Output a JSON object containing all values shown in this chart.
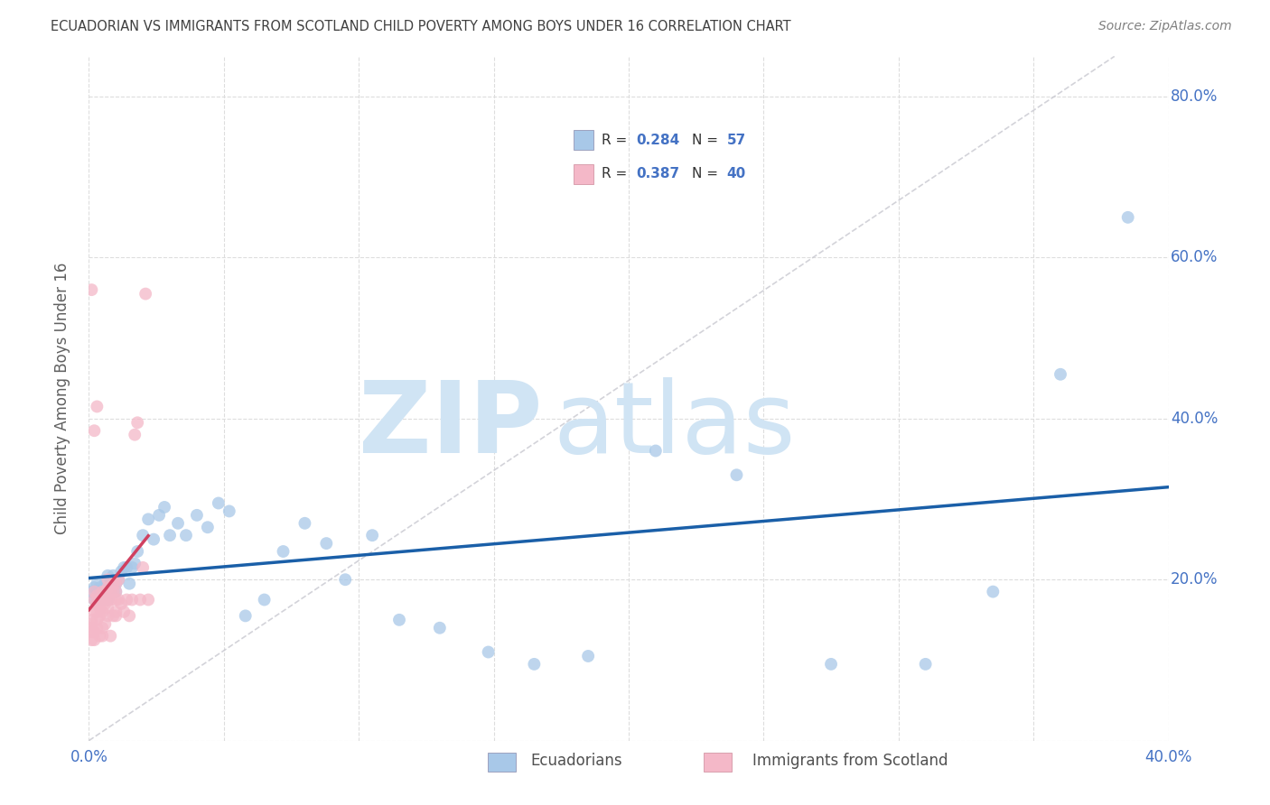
{
  "title": "ECUADORIAN VS IMMIGRANTS FROM SCOTLAND CHILD POVERTY AMONG BOYS UNDER 16 CORRELATION CHART",
  "source": "Source: ZipAtlas.com",
  "ylabel": "Child Poverty Among Boys Under 16",
  "xlim": [
    0.0,
    0.4
  ],
  "ylim": [
    0.0,
    0.85
  ],
  "xtick_vals": [
    0.0,
    0.05,
    0.1,
    0.15,
    0.2,
    0.25,
    0.3,
    0.35,
    0.4
  ],
  "xtick_labels": [
    "0.0%",
    "",
    "",
    "",
    "",
    "",
    "",
    "",
    "40.0%"
  ],
  "ytick_vals": [
    0.0,
    0.2,
    0.4,
    0.6,
    0.8
  ],
  "ytick_labels": [
    "",
    "20.0%",
    "40.0%",
    "60.0%",
    "80.0%"
  ],
  "color_blue": "#a8c8e8",
  "color_pink": "#f4b8c8",
  "color_trend_blue": "#1a5fa8",
  "color_trend_pink": "#d04060",
  "color_ref_line": "#c8c8d0",
  "watermark_color": "#d0e4f4",
  "axis_label_color": "#4472c4",
  "title_color": "#404040",
  "source_color": "#808080",
  "ylabel_color": "#606060",
  "ecuador_x": [
    0.001,
    0.002,
    0.002,
    0.003,
    0.003,
    0.004,
    0.004,
    0.005,
    0.005,
    0.006,
    0.006,
    0.007,
    0.007,
    0.008,
    0.008,
    0.009,
    0.01,
    0.01,
    0.011,
    0.012,
    0.013,
    0.014,
    0.015,
    0.016,
    0.017,
    0.018,
    0.02,
    0.022,
    0.024,
    0.026,
    0.028,
    0.03,
    0.033,
    0.036,
    0.04,
    0.044,
    0.048,
    0.052,
    0.058,
    0.065,
    0.072,
    0.08,
    0.088,
    0.095,
    0.105,
    0.115,
    0.13,
    0.148,
    0.165,
    0.185,
    0.21,
    0.24,
    0.275,
    0.31,
    0.335,
    0.36,
    0.385
  ],
  "ecuador_y": [
    0.185,
    0.19,
    0.175,
    0.185,
    0.195,
    0.18,
    0.19,
    0.185,
    0.175,
    0.185,
    0.195,
    0.175,
    0.205,
    0.185,
    0.195,
    0.205,
    0.195,
    0.185,
    0.2,
    0.21,
    0.215,
    0.215,
    0.195,
    0.215,
    0.22,
    0.235,
    0.255,
    0.275,
    0.25,
    0.28,
    0.29,
    0.255,
    0.27,
    0.255,
    0.28,
    0.265,
    0.295,
    0.285,
    0.155,
    0.175,
    0.235,
    0.27,
    0.245,
    0.2,
    0.255,
    0.15,
    0.14,
    0.11,
    0.095,
    0.105,
    0.36,
    0.33,
    0.095,
    0.095,
    0.185,
    0.455,
    0.65
  ],
  "scotland_x": [
    0.001,
    0.001,
    0.002,
    0.002,
    0.002,
    0.003,
    0.003,
    0.003,
    0.004,
    0.004,
    0.004,
    0.005,
    0.005,
    0.005,
    0.006,
    0.006,
    0.006,
    0.007,
    0.007,
    0.007,
    0.008,
    0.008,
    0.009,
    0.009,
    0.01,
    0.01,
    0.01,
    0.011,
    0.011,
    0.012,
    0.013,
    0.014,
    0.015,
    0.016,
    0.017,
    0.018,
    0.019,
    0.02,
    0.021,
    0.022
  ],
  "scotland_y": [
    0.14,
    0.15,
    0.175,
    0.16,
    0.185,
    0.17,
    0.16,
    0.18,
    0.155,
    0.175,
    0.165,
    0.16,
    0.175,
    0.185,
    0.17,
    0.175,
    0.185,
    0.19,
    0.175,
    0.2,
    0.185,
    0.175,
    0.195,
    0.185,
    0.175,
    0.195,
    0.185,
    0.175,
    0.2,
    0.17,
    0.16,
    0.175,
    0.155,
    0.175,
    0.38,
    0.395,
    0.175,
    0.215,
    0.555,
    0.175
  ],
  "scotland_extra_x": [
    0.001,
    0.001,
    0.001,
    0.002,
    0.002,
    0.003,
    0.003,
    0.004,
    0.005,
    0.005,
    0.006,
    0.007,
    0.007,
    0.008,
    0.009,
    0.01,
    0.01,
    0.001,
    0.002,
    0.003
  ],
  "scotland_extra_y": [
    0.145,
    0.135,
    0.125,
    0.135,
    0.125,
    0.14,
    0.15,
    0.13,
    0.14,
    0.13,
    0.145,
    0.155,
    0.165,
    0.13,
    0.155,
    0.16,
    0.155,
    0.56,
    0.385,
    0.415
  ]
}
